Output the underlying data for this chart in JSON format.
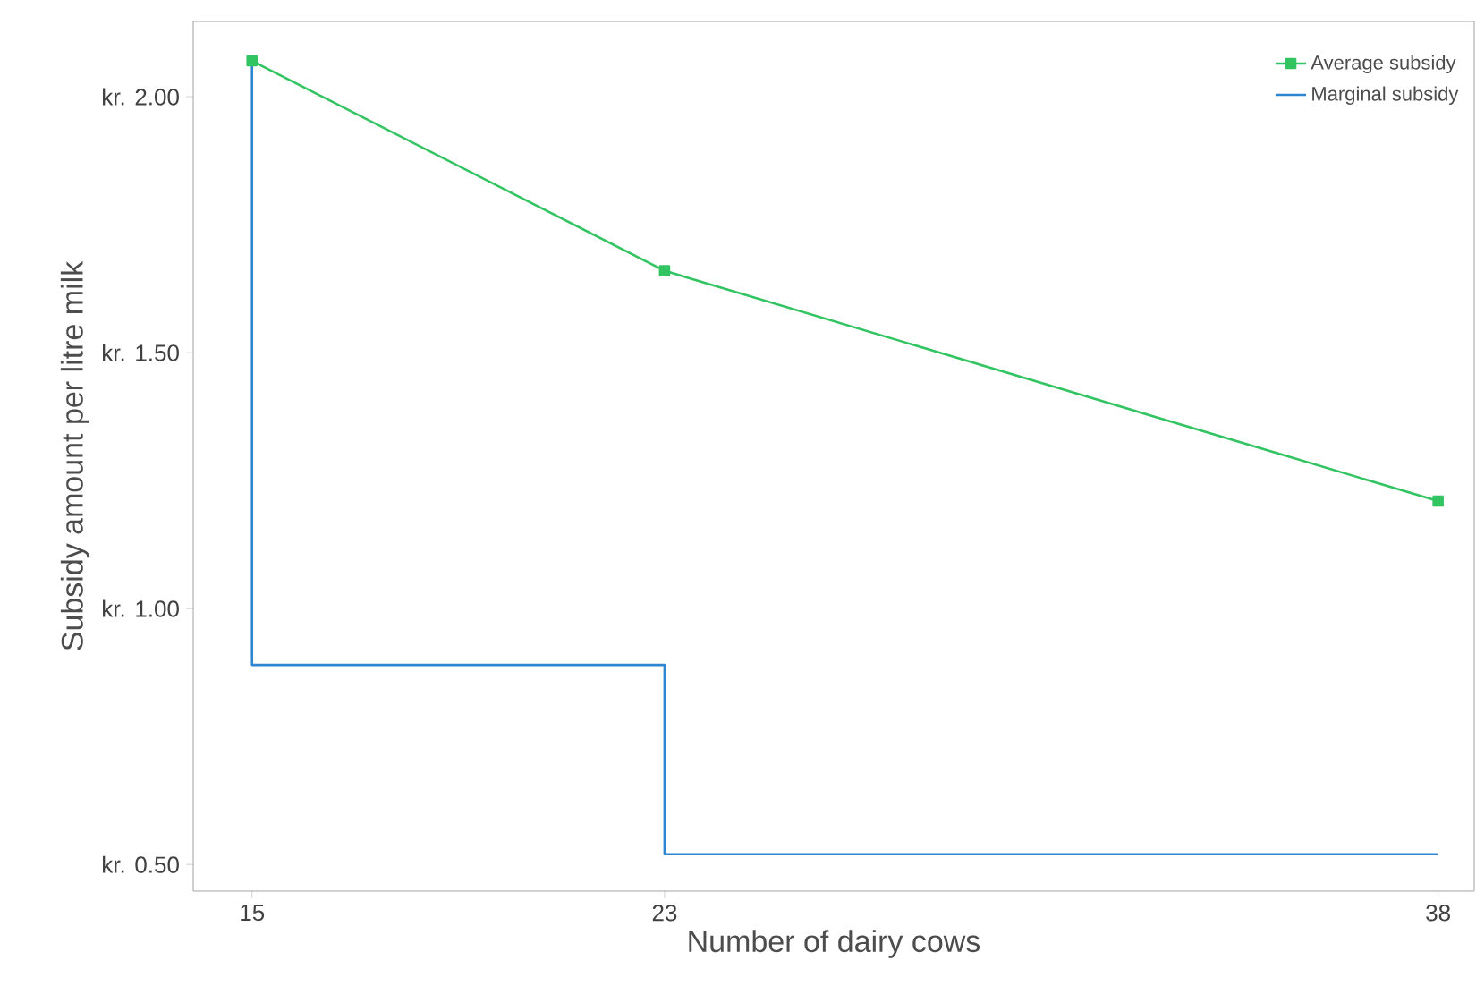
{
  "chart_data": {
    "type": "line",
    "xlabel": "Number of dairy cows",
    "ylabel": "Subsidy amount per litre milk",
    "xlim": [
      13.86,
      38.7
    ],
    "ylim": [
      0.448,
      2.147
    ],
    "xticks": [
      15,
      23,
      38
    ],
    "yticks": [
      {
        "value": 0.5,
        "label": "kr. 0.50"
      },
      {
        "value": 1.0,
        "label": "kr. 1.00"
      },
      {
        "value": 1.5,
        "label": "kr. 1.50"
      },
      {
        "value": 2.0,
        "label": "kr. 2.00"
      }
    ],
    "grid": false,
    "legend": "top right",
    "series": [
      {
        "name": "Average subsidy",
        "color": "#33c462",
        "marker": "square",
        "x": [
          15,
          23,
          38
        ],
        "values": [
          2.07,
          1.66,
          1.21
        ]
      },
      {
        "name": "Marginal subsidy",
        "type": "step",
        "color": "#2f86d0",
        "marker": "none",
        "x": [
          15,
          15,
          23,
          38
        ],
        "values": [
          2.07,
          0.89,
          0.52,
          0.52
        ]
      }
    ]
  }
}
